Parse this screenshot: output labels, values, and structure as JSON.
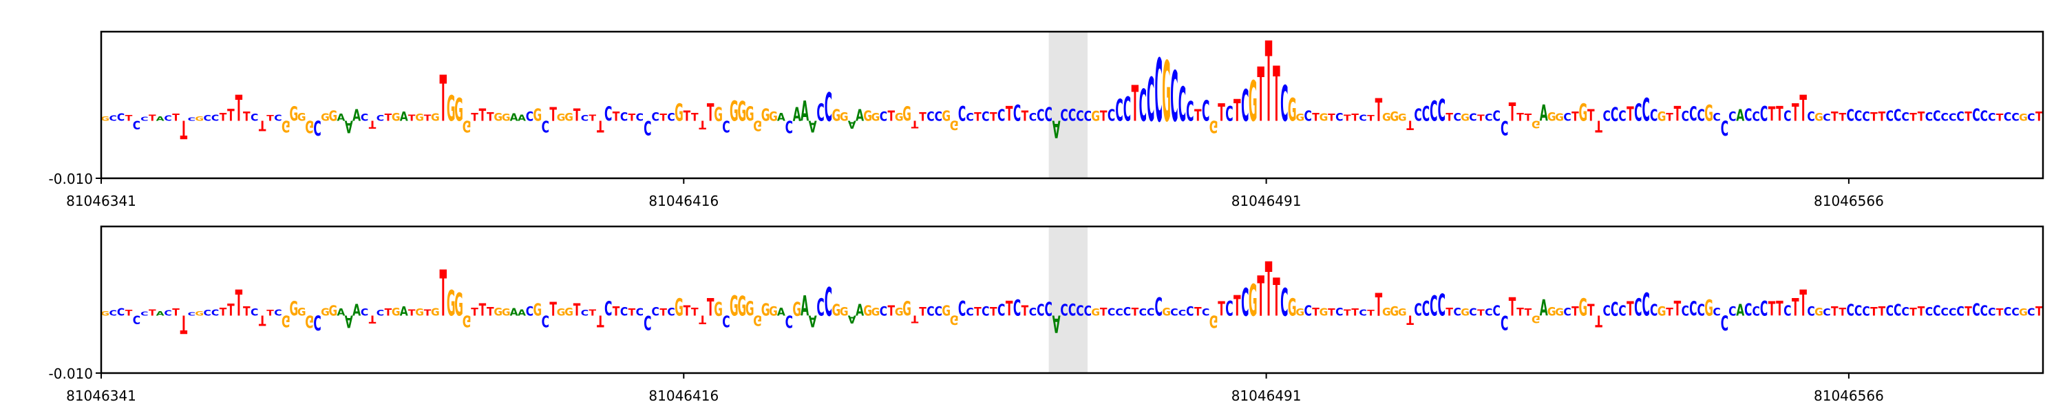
{
  "colors": {
    "A": "#008000",
    "C": "#0000ff",
    "G": "#ffa500",
    "T": "#ff0000",
    "highlight": "#e5e5e5",
    "frame": "#000000"
  },
  "chart_data": [
    {
      "type": "sequence-logo",
      "title": "",
      "xlabel": "",
      "ylabel": "",
      "x_range": [
        81046341,
        81046591
      ],
      "x_tick_labels": [
        "81046341",
        "81046416",
        "81046491",
        "81046566"
      ],
      "x_ticks": [
        81046341,
        81046416,
        81046491,
        81046566
      ],
      "y_tick_labels": [
        "-0.010"
      ],
      "y_ticks": [
        -0.01
      ],
      "ylim": [
        -0.01,
        0.0155
      ],
      "highlight": [
        81046463,
        81046468
      ],
      "sequence": "GCCTCCTACTTCGCCTTTTCTTCGGGGCGGAAACTCTGATGTGTGGGTTTGGAACGCTGGTCTTCTCTCCCTCGTTTTGCGGGGGGACAAACCGGAAGGCTGGTTCCGGCCTCTCTCTCCCACCCCGTCCCTCCCGCCCTCGTCTCGTTTCGGCTGTCTTCTTGGGTCCCCTCGCTCCCTTTGAGGCTGTTCCCTCCCGTTCCCGCCCACCCTTCTTCGCTTCCCTTCCCTTCCCCCTCCCTCCGCT",
      "scores": [
        0.0008,
        0.0009,
        0.0013,
        0.001,
        -0.0015,
        0.0007,
        0.0011,
        0.0008,
        0.0009,
        0.0012,
        -0.0032,
        0.0006,
        0.0008,
        0.001,
        0.0011,
        0.0014,
        0.0021,
        0.0045,
        0.0016,
        0.0012,
        -0.0018,
        0.001,
        0.0011,
        -0.002,
        0.0025,
        0.0014,
        -0.0022,
        -0.0026,
        0.0013,
        0.0018,
        0.0012,
        -0.0022,
        0.002,
        0.0012,
        -0.0014,
        0.001,
        0.0012,
        0.0014,
        0.0016,
        0.0011,
        0.0012,
        0.0011,
        0.0013,
        0.008,
        0.0044,
        0.004,
        -0.002,
        0.0014,
        0.0022,
        0.0015,
        0.0014,
        0.0012,
        0.0013,
        0.0011,
        0.0016,
        0.0022,
        -0.002,
        0.0024,
        0.0012,
        0.0014,
        0.0022,
        0.001,
        0.0011,
        -0.002,
        0.0025,
        0.0016,
        0.0015,
        0.0012,
        0.0013,
        -0.0025,
        0.0015,
        0.0012,
        0.0014,
        0.003,
        0.0018,
        0.0014,
        -0.0015,
        0.003,
        0.0024,
        -0.002,
        0.0035,
        0.0034,
        0.0025,
        -0.0018,
        0.0022,
        0.0016,
        0.0014,
        -0.0022,
        0.0024,
        0.0035,
        -0.002,
        0.003,
        0.005,
        0.002,
        0.0015,
        -0.0014,
        0.002,
        0.0018,
        0.0014,
        0.0016,
        0.0018,
        0.0014,
        0.0025,
        -0.0013,
        0.0015,
        0.0016,
        0.0016,
        0.0018,
        -0.0016,
        0.0026,
        0.0014,
        0.0015,
        0.0016,
        0.0015,
        0.002,
        0.0026,
        0.0028,
        0.0018,
        0.0014,
        0.002,
        0.0024,
        -0.003,
        0.002,
        0.0021,
        0.0018,
        0.0017,
        0.0017,
        0.0018,
        0.002,
        0.0038,
        0.0042,
        0.0062,
        0.0056,
        0.0076,
        0.011,
        0.0105,
        0.0088,
        0.006,
        0.0034,
        0.002,
        0.0036,
        -0.0022,
        0.003,
        0.0026,
        0.0038,
        0.0055,
        0.007,
        0.0094,
        0.014,
        0.0096,
        0.0062,
        0.004,
        0.0012,
        0.0018,
        0.0014,
        0.0013,
        0.0012,
        0.0014,
        0.0011,
        0.0012,
        0.0011,
        0.001,
        0.004,
        0.0014,
        0.0016,
        0.0012,
        -0.0016,
        0.0022,
        0.0026,
        0.0035,
        0.0038,
        0.0014,
        0.0014,
        0.0012,
        0.0013,
        0.0011,
        0.0012,
        0.0018,
        -0.0025,
        0.0032,
        0.0014,
        0.0012,
        -0.0013,
        0.0028,
        0.0015,
        0.0013,
        0.0014,
        0.0016,
        0.003,
        0.002,
        -0.002,
        0.0018,
        0.0024,
        0.0018,
        0.0025,
        0.003,
        0.004,
        0.002,
        0.0016,
        0.0014,
        0.0026,
        0.0017,
        0.0025,
        0.002,
        0.0028,
        0.0014,
        -0.0026,
        0.0016,
        0.002,
        0.0022,
        0.0016,
        0.0026,
        0.0025,
        0.0026,
        0.0018,
        0.003,
        0.0045,
        0.0016,
        0.0014,
        0.0012,
        0.0016,
        0.0014,
        0.002,
        0.0018,
        0.0016,
        0.0015,
        0.0016,
        0.0018,
        0.002,
        0.0015,
        0.0014,
        0.0016,
        0.0015,
        0.0018,
        0.0014,
        0.0013,
        0.0016,
        0.0016,
        0.0022,
        0.0018,
        0.0014,
        0.0012,
        0.0015,
        0.0014,
        0.0012,
        0.0013,
        0.0016,
        0.0016,
        0.0028,
        0.0014,
        0.002
      ]
    },
    {
      "type": "sequence-logo",
      "title": "",
      "xlabel": "",
      "ylabel": "",
      "x_range": [
        81046341,
        81046591
      ],
      "x_tick_labels": [
        "81046341",
        "81046416",
        "81046491",
        "81046566"
      ],
      "x_ticks": [
        81046341,
        81046416,
        81046491,
        81046566
      ],
      "y_tick_labels": [
        "-0.010"
      ],
      "y_ticks": [
        -0.01
      ],
      "ylim": [
        -0.01,
        0.0155
      ],
      "highlight": [
        81046463,
        81046468
      ],
      "sequence": "GCCTCCTACTTCGCCTTTTCTTCGGGGCGGAAACTCTGATGTGTGGGTTTGGAACGCTGGTCTTCTCTCCCTCGTTTTGCGGGGGGACGAACCGGAAGGCTGGTTCCGGCCTCTCTCTCCCACCCCGTCCCTCCCGCCCTCGTCTCGTTTCGGCTGTCTTCTTGGGTCCCCTCGCTCCCTTTGAGGCTGTTCCCTCCCGTTCCCGCCCACCCTTCTTCGCTTCCCTTCCCTTCCCCCTCCCTCCGCT",
      "scores": [
        0.0008,
        0.0009,
        0.0013,
        0.001,
        -0.0015,
        0.0007,
        0.0011,
        0.0008,
        0.0009,
        0.0012,
        -0.0032,
        0.0006,
        0.0008,
        0.001,
        0.0011,
        0.0014,
        0.0021,
        0.0045,
        0.0016,
        0.0012,
        -0.0018,
        0.001,
        0.0011,
        -0.002,
        0.0025,
        0.0014,
        -0.0022,
        -0.0026,
        0.0013,
        0.0018,
        0.0012,
        -0.0022,
        0.002,
        0.0012,
        -0.0014,
        0.001,
        0.0012,
        0.0014,
        0.0016,
        0.0011,
        0.0012,
        0.0011,
        0.0013,
        0.008,
        0.0044,
        0.004,
        -0.002,
        0.0014,
        0.0022,
        0.0015,
        0.0014,
        0.0012,
        0.0013,
        0.0011,
        0.0016,
        0.0022,
        -0.002,
        0.0024,
        0.0012,
        0.0014,
        0.0022,
        0.001,
        0.0011,
        -0.002,
        0.0025,
        0.0016,
        0.0015,
        0.0012,
        0.0013,
        -0.0025,
        0.0015,
        0.0012,
        0.0014,
        0.003,
        0.0018,
        0.0014,
        -0.0015,
        0.003,
        0.0024,
        -0.002,
        0.0035,
        0.0034,
        0.0025,
        -0.0018,
        0.0022,
        0.0016,
        0.0014,
        -0.0022,
        0.0024,
        0.0035,
        -0.002,
        0.003,
        0.005,
        0.002,
        0.0015,
        -0.0014,
        0.002,
        0.0018,
        0.0014,
        0.0016,
        0.0018,
        0.0014,
        0.0025,
        -0.0013,
        0.0015,
        0.0016,
        0.0016,
        0.0018,
        -0.0016,
        0.0026,
        0.0014,
        0.0015,
        0.0016,
        0.0015,
        0.002,
        0.0026,
        0.0028,
        0.0018,
        0.0014,
        0.002,
        0.0024,
        -0.003,
        0.002,
        0.0021,
        0.0018,
        0.0017,
        0.0012,
        0.0014,
        0.0013,
        0.0012,
        0.0015,
        0.0014,
        0.0012,
        0.0013,
        0.0032,
        0.0014,
        0.0012,
        0.001,
        0.0016,
        0.0015,
        0.0012,
        -0.0022,
        0.0025,
        0.0026,
        0.0036,
        0.0048,
        0.0055,
        0.007,
        0.0094,
        0.0066,
        0.0048,
        0.003,
        0.0012,
        0.0018,
        0.0014,
        0.0013,
        0.0012,
        0.0014,
        0.0011,
        0.0012,
        0.0011,
        0.001,
        0.004,
        0.0014,
        0.0016,
        0.0012,
        -0.0016,
        0.0022,
        0.0026,
        0.0035,
        0.0038,
        0.0014,
        0.0014,
        0.0012,
        0.0013,
        0.0011,
        0.0012,
        0.0018,
        -0.0025,
        0.0032,
        0.0014,
        0.0012,
        -0.0013,
        0.0028,
        0.0015,
        0.0013,
        0.0014,
        0.0016,
        0.003,
        0.002,
        -0.002,
        0.0018,
        0.0024,
        0.0018,
        0.0025,
        0.003,
        0.004,
        0.002,
        0.0016,
        0.0014,
        0.0026,
        0.0017,
        0.0025,
        0.002,
        0.0028,
        0.0014,
        -0.0026,
        0.0016,
        0.002,
        0.0022,
        0.0016,
        0.0026,
        0.0025,
        0.0026,
        0.0018,
        0.003,
        0.0045,
        0.0016,
        0.0014,
        0.0012,
        0.0016,
        0.0014,
        0.002,
        0.0018,
        0.0016,
        0.0015,
        0.0016,
        0.0018,
        0.002,
        0.0015,
        0.0014,
        0.0016,
        0.0015,
        0.0018,
        0.0014,
        0.0013,
        0.0016,
        0.0016,
        0.0022,
        0.0018,
        0.0014,
        0.0012,
        0.0015,
        0.0014,
        0.0012,
        0.0013,
        0.0016,
        0.0016,
        0.0028,
        0.0014,
        0.002
      ]
    }
  ]
}
